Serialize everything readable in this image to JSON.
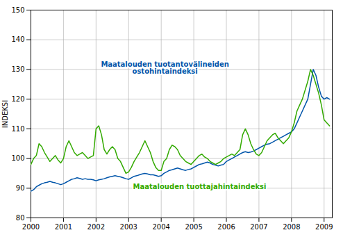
{
  "chart_data": {
    "type": "line",
    "ylabel": "INDEKSI",
    "xlim": [
      2000,
      2009.25
    ],
    "xticks": [
      2000,
      2001,
      2002,
      2003,
      2004,
      2005,
      2006,
      2007,
      2008,
      2009
    ],
    "ylim": [
      80,
      150
    ],
    "yticks": [
      80,
      90,
      100,
      110,
      120,
      130,
      140,
      150
    ],
    "grid": true,
    "x": [
      2000.0,
      2000.083,
      2000.167,
      2000.25,
      2000.333,
      2000.417,
      2000.5,
      2000.583,
      2000.667,
      2000.75,
      2000.833,
      2000.917,
      2001.0,
      2001.083,
      2001.167,
      2001.25,
      2001.333,
      2001.417,
      2001.5,
      2001.583,
      2001.667,
      2001.75,
      2001.833,
      2001.917,
      2002.0,
      2002.083,
      2002.167,
      2002.25,
      2002.333,
      2002.417,
      2002.5,
      2002.583,
      2002.667,
      2002.75,
      2002.833,
      2002.917,
      2003.0,
      2003.083,
      2003.167,
      2003.25,
      2003.333,
      2003.417,
      2003.5,
      2003.583,
      2003.667,
      2003.75,
      2003.833,
      2003.917,
      2004.0,
      2004.083,
      2004.167,
      2004.25,
      2004.333,
      2004.417,
      2004.5,
      2004.583,
      2004.667,
      2004.75,
      2004.833,
      2004.917,
      2005.0,
      2005.083,
      2005.167,
      2005.25,
      2005.333,
      2005.417,
      2005.5,
      2005.583,
      2005.667,
      2005.75,
      2005.833,
      2005.917,
      2006.0,
      2006.083,
      2006.167,
      2006.25,
      2006.333,
      2006.417,
      2006.5,
      2006.583,
      2006.667,
      2006.75,
      2006.833,
      2006.917,
      2007.0,
      2007.083,
      2007.167,
      2007.25,
      2007.333,
      2007.417,
      2007.5,
      2007.583,
      2007.667,
      2007.75,
      2007.833,
      2007.917,
      2008.0,
      2008.083,
      2008.167,
      2008.25,
      2008.333,
      2008.417,
      2008.5,
      2008.583,
      2008.667,
      2008.75,
      2008.833,
      2008.917,
      2009.0,
      2009.083,
      2009.167
    ],
    "series": [
      {
        "color": "#0055AA",
        "values": [
          89.0,
          89.5,
          90.5,
          91.0,
          91.5,
          91.8,
          92.0,
          92.3,
          92.0,
          91.8,
          91.5,
          91.2,
          91.5,
          92.0,
          92.5,
          93.0,
          93.2,
          93.5,
          93.3,
          93.0,
          93.2,
          93.0,
          93.0,
          92.8,
          92.5,
          92.8,
          93.0,
          93.2,
          93.5,
          93.8,
          94.0,
          94.2,
          94.0,
          93.8,
          93.5,
          93.2,
          93.0,
          93.5,
          94.0,
          94.2,
          94.5,
          94.8,
          95.0,
          94.8,
          94.5,
          94.5,
          94.3,
          94.0,
          94.2,
          95.0,
          95.5,
          96.0,
          96.2,
          96.5,
          96.8,
          96.5,
          96.2,
          96.0,
          96.3,
          96.5,
          97.0,
          97.5,
          98.0,
          98.2,
          98.5,
          98.8,
          98.5,
          98.0,
          97.8,
          97.5,
          97.8,
          98.0,
          99.0,
          99.5,
          100.0,
          100.5,
          101.0,
          101.5,
          102.0,
          102.3,
          102.0,
          102.2,
          102.5,
          103.0,
          103.5,
          104.0,
          104.5,
          104.8,
          105.0,
          105.5,
          106.0,
          106.5,
          107.0,
          107.5,
          108.0,
          108.5,
          109.0,
          110.0,
          112.0,
          114.0,
          116.0,
          118.0,
          120.0,
          125.0,
          130.0,
          128.0,
          124.0,
          121.0,
          120.0,
          120.5,
          120.0
        ]
      },
      {
        "color": "#33AA00",
        "values": [
          98.0,
          100.0,
          101.0,
          105.0,
          104.0,
          102.0,
          100.5,
          99.0,
          100.0,
          101.0,
          99.5,
          98.5,
          100.0,
          104.0,
          106.0,
          104.0,
          102.0,
          101.0,
          101.5,
          102.0,
          101.0,
          100.0,
          100.5,
          101.0,
          110.0,
          111.0,
          108.0,
          103.0,
          101.5,
          103.0,
          104.0,
          103.0,
          100.0,
          99.0,
          97.0,
          95.0,
          95.5,
          97.0,
          99.0,
          100.5,
          102.0,
          104.0,
          106.0,
          104.0,
          102.0,
          99.0,
          97.0,
          96.0,
          96.0,
          99.0,
          100.0,
          103.0,
          104.5,
          104.0,
          103.0,
          101.0,
          100.0,
          99.0,
          98.5,
          98.0,
          99.0,
          100.0,
          101.0,
          101.5,
          100.5,
          100.0,
          99.0,
          98.5,
          98.0,
          98.5,
          99.0,
          100.0,
          100.5,
          101.0,
          101.5,
          101.0,
          102.0,
          103.0,
          108.0,
          110.0,
          108.0,
          105.0,
          103.0,
          101.5,
          101.0,
          102.0,
          104.0,
          106.0,
          107.0,
          108.0,
          108.5,
          107.0,
          106.0,
          105.0,
          106.0,
          107.0,
          109.0,
          112.0,
          116.0,
          118.0,
          120.0,
          123.0,
          126.0,
          130.0,
          128.0,
          125.0,
          122.0,
          118.0,
          113.0,
          112.0,
          111.0
        ]
      }
    ],
    "annotations": [
      {
        "text": "Maatalouden tuotantovälineiden\nostohintaindeksi",
        "color": "#0055AA"
      },
      {
        "text": "Maatalouden tuottajahintaindeksi",
        "color": "#33AA00"
      }
    ]
  }
}
